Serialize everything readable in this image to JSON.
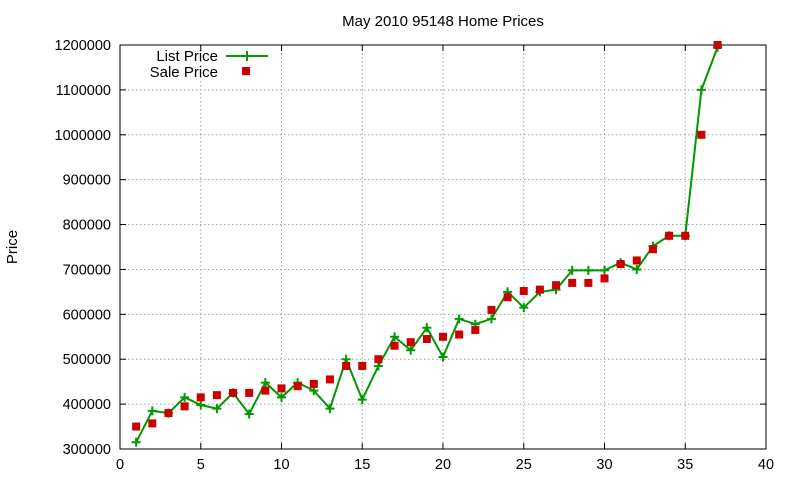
{
  "chart_data": {
    "type": "line",
    "title": "May 2010 95148 Home Prices",
    "xlabel": "",
    "ylabel": "Price",
    "xlim": [
      0,
      40
    ],
    "ylim": [
      300000,
      1200000
    ],
    "xticks": [
      0,
      5,
      10,
      15,
      20,
      25,
      30,
      35,
      40
    ],
    "yticks": [
      300000,
      400000,
      500000,
      600000,
      700000,
      800000,
      900000,
      1000000,
      1100000,
      1200000
    ],
    "grid": true,
    "legend_position": "top-left",
    "series": [
      {
        "name": "List Price",
        "style": "line-with-plus-markers",
        "color": "#009900",
        "x": [
          1,
          2,
          3,
          4,
          5,
          6,
          7,
          8,
          9,
          10,
          11,
          12,
          13,
          14,
          15,
          16,
          17,
          18,
          19,
          20,
          21,
          22,
          23,
          24,
          25,
          26,
          27,
          28,
          29,
          30,
          31,
          32,
          33,
          34,
          35,
          36,
          37
        ],
        "values": [
          315000,
          385000,
          380000,
          415000,
          398000,
          390000,
          425000,
          378000,
          448000,
          415000,
          448000,
          430000,
          390000,
          500000,
          410000,
          485000,
          550000,
          520000,
          570000,
          505000,
          590000,
          578000,
          590000,
          650000,
          615000,
          650000,
          655000,
          698000,
          698000,
          698000,
          715000,
          700000,
          752000,
          775000,
          775000,
          1100000,
          1195000
        ]
      },
      {
        "name": "Sale Price",
        "style": "square-markers",
        "color": "#cc0000",
        "x": [
          1,
          2,
          3,
          4,
          5,
          6,
          7,
          8,
          9,
          10,
          11,
          12,
          13,
          14,
          15,
          16,
          17,
          18,
          19,
          20,
          21,
          22,
          23,
          24,
          25,
          26,
          27,
          28,
          29,
          30,
          31,
          32,
          33,
          34,
          35,
          36,
          37
        ],
        "values": [
          350000,
          357000,
          380000,
          395000,
          415000,
          420000,
          425000,
          425000,
          430000,
          435000,
          440000,
          445000,
          455000,
          485000,
          485000,
          500000,
          530000,
          538000,
          545000,
          550000,
          555000,
          565000,
          610000,
          638000,
          652000,
          655000,
          665000,
          670000,
          670000,
          680000,
          712000,
          720000,
          745000,
          775000,
          775000,
          1000000,
          1200000
        ]
      }
    ]
  }
}
